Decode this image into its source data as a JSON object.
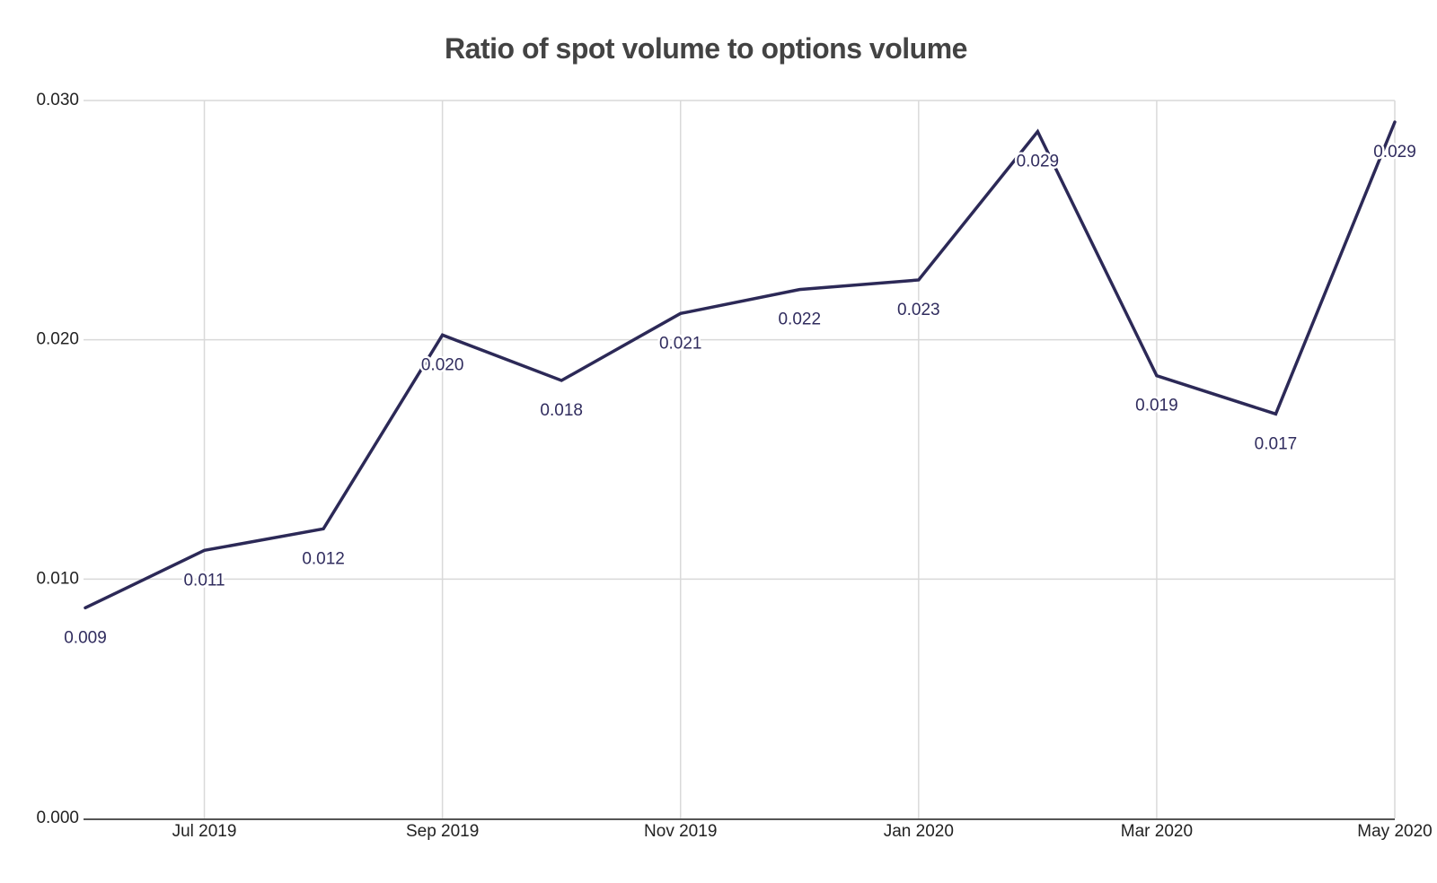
{
  "chart_data": {
    "type": "line",
    "title": "Ratio of spot volume to options volume",
    "x": [
      "Jun 2019",
      "Jul 2019",
      "Aug 2019",
      "Sep 2019",
      "Oct 2019",
      "Nov 2019",
      "Dec 2019",
      "Jan 2020",
      "Feb 2020",
      "Mar 2020",
      "Apr 2020",
      "May 2020"
    ],
    "values": [
      0.009,
      0.011,
      0.012,
      0.02,
      0.018,
      0.021,
      0.022,
      0.023,
      0.029,
      0.019,
      0.017,
      0.029
    ],
    "values_precise": [
      0.0088,
      0.0112,
      0.0121,
      0.0202,
      0.0183,
      0.0211,
      0.0221,
      0.0225,
      0.0287,
      0.0185,
      0.0169,
      0.0291
    ],
    "point_labels": [
      "0.009",
      "0.011",
      "0.012",
      "0.020",
      "0.018",
      "0.021",
      "0.022",
      "0.023",
      "0.029",
      "0.019",
      "0.017",
      "0.029"
    ],
    "xlabel": "",
    "ylabel": "",
    "x_tick_labels": [
      "Jul 2019",
      "Sep 2019",
      "Nov 2019",
      "Jan 2020",
      "Mar 2020",
      "May 2020"
    ],
    "x_tick_month_index": [
      1,
      3,
      5,
      7,
      9,
      11
    ],
    "y_tick_labels": [
      "0.000",
      "0.010",
      "0.020",
      "0.030"
    ],
    "y_tick_values": [
      0,
      0.01,
      0.02,
      0.03
    ],
    "ylim": [
      0,
      0.03
    ],
    "grid": true,
    "legend_position": "none",
    "colors": {
      "line": "#2c2957",
      "point_label": "#302c5e",
      "grid": "#d9d9d9",
      "axis_line": "#555555",
      "tick_label": "#222222",
      "title": "#434343",
      "background": "#ffffff"
    }
  }
}
